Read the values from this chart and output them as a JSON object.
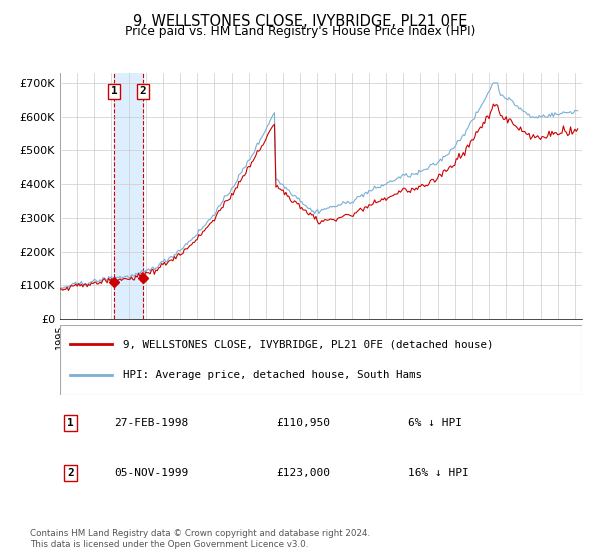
{
  "title": "9, WELLSTONES CLOSE, IVYBRIDGE, PL21 0FE",
  "subtitle": "Price paid vs. HM Land Registry's House Price Index (HPI)",
  "legend_line1": "9, WELLSTONES CLOSE, IVYBRIDGE, PL21 0FE (detached house)",
  "legend_line2": "HPI: Average price, detached house, South Hams",
  "table_row1": [
    "1",
    "27-FEB-1998",
    "£110,950",
    "6% ↓ HPI"
  ],
  "table_row2": [
    "2",
    "05-NOV-1999",
    "£123,000",
    "16% ↓ HPI"
  ],
  "footer": "Contains HM Land Registry data © Crown copyright and database right 2024.\nThis data is licensed under the Open Government Licence v3.0.",
  "hpi_color": "#7bafd4",
  "price_color": "#cc0000",
  "marker_color": "#cc0000",
  "vspan_color": "#ddeeff",
  "vline_color": "#cc0000",
  "grid_color": "#cccccc",
  "bg_color": "#ffffff",
  "box_color": "#cc0000",
  "ylim": [
    0,
    730000
  ],
  "yticks": [
    0,
    100000,
    200000,
    300000,
    400000,
    500000,
    600000,
    700000
  ],
  "ytick_labels": [
    "£0",
    "£100K",
    "£200K",
    "£300K",
    "£400K",
    "£500K",
    "£600K",
    "£700K"
  ],
  "purchase1_price": 110950,
  "purchase2_price": 123000,
  "p1_hpi": 117926,
  "p2_hpi": 146429
}
